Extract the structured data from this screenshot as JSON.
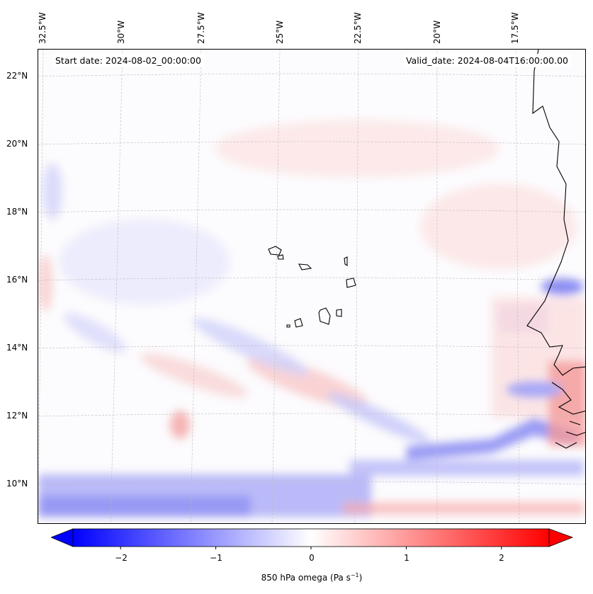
{
  "map": {
    "start_date": "Start date: 2024-08-02_00:00:00",
    "valid_date": "Valid_date: 2024-08-04T16:00:00.00",
    "lon_labels": [
      "32.5°W",
      "30°W",
      "27.5°W",
      "25°W",
      "22.5°W",
      "20°W",
      "17.5°W"
    ],
    "lat_labels": [
      "22°N",
      "20°N",
      "18°N",
      "16°N",
      "14°N",
      "12°N",
      "10°N"
    ]
  },
  "colorbar": {
    "label": "850 hPa omega (Pa s",
    "label_sup": "−1",
    "label_end": ")",
    "ticks": [
      "−2",
      "−1",
      "0",
      "1",
      "2"
    ],
    "tick_values": [
      -2,
      -1,
      0,
      1,
      2
    ],
    "range": [
      -2.5,
      2.5
    ],
    "low_color": "#0000ff",
    "mid_color": "#ffffff",
    "high_color": "#ff0000"
  }
}
